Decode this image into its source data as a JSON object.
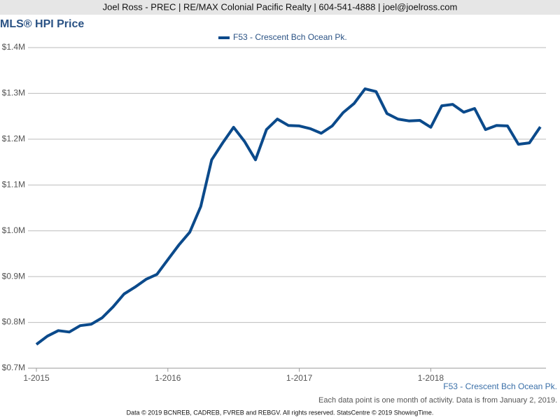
{
  "header": "Joel Ross - PREC | RE/MAX Colonial Pacific Realty | 604-541-4888 | joel@joelross.com",
  "chart_data": {
    "type": "line",
    "title": "MLS® HPI Price",
    "categories": [
      "1-2015",
      null,
      null,
      null,
      null,
      null,
      null,
      null,
      null,
      null,
      null,
      null,
      "1-2016",
      null,
      null,
      null,
      null,
      null,
      null,
      null,
      null,
      null,
      null,
      null,
      "1-2017",
      null,
      null,
      null,
      null,
      null,
      null,
      null,
      null,
      null,
      null,
      null,
      "1-2018",
      null,
      null,
      null,
      null,
      null,
      null,
      null,
      null,
      null,
      null
    ],
    "series": [
      {
        "name": "F53 - Crescent Bch Ocean Pk.",
        "color": "#0b4a8b",
        "values": [
          752000,
          770000,
          782000,
          779000,
          793000,
          796000,
          810000,
          834000,
          862000,
          877000,
          894000,
          905000,
          937000,
          969000,
          997000,
          1053000,
          1155000,
          1192000,
          1226000,
          1195000,
          1155000,
          1221000,
          1244000,
          1230000,
          1229000,
          1223000,
          1213000,
          1229000,
          1258000,
          1278000,
          1310000,
          1304000,
          1256000,
          1244000,
          1240000,
          1241000,
          1226000,
          1273000,
          1276000,
          1259000,
          1267000,
          1221000,
          1230000,
          1229000,
          1189000,
          1192000,
          1227000
        ]
      }
    ],
    "ylim": [
      700000,
      1400000
    ],
    "yticks": [
      {
        "value": 700000,
        "label": "$0.7M"
      },
      {
        "value": 800000,
        "label": "$0.8M"
      },
      {
        "value": 900000,
        "label": "$0.9M"
      },
      {
        "value": 1000000,
        "label": "$1.0M"
      },
      {
        "value": 1100000,
        "label": "$1.1M"
      },
      {
        "value": 1200000,
        "label": "$1.2M"
      },
      {
        "value": 1300000,
        "label": "$1.3M"
      },
      {
        "value": 1400000,
        "label": "$1.4M"
      }
    ],
    "grid": true,
    "legend": "top",
    "note": "Each data point is one month of activity. Data is from January 2, 2019."
  },
  "footer": "Data © 2019 BCNREB, CADREB, FVREB and REBGV. All rights reserved. StatsCentre © 2019 ShowingTime."
}
